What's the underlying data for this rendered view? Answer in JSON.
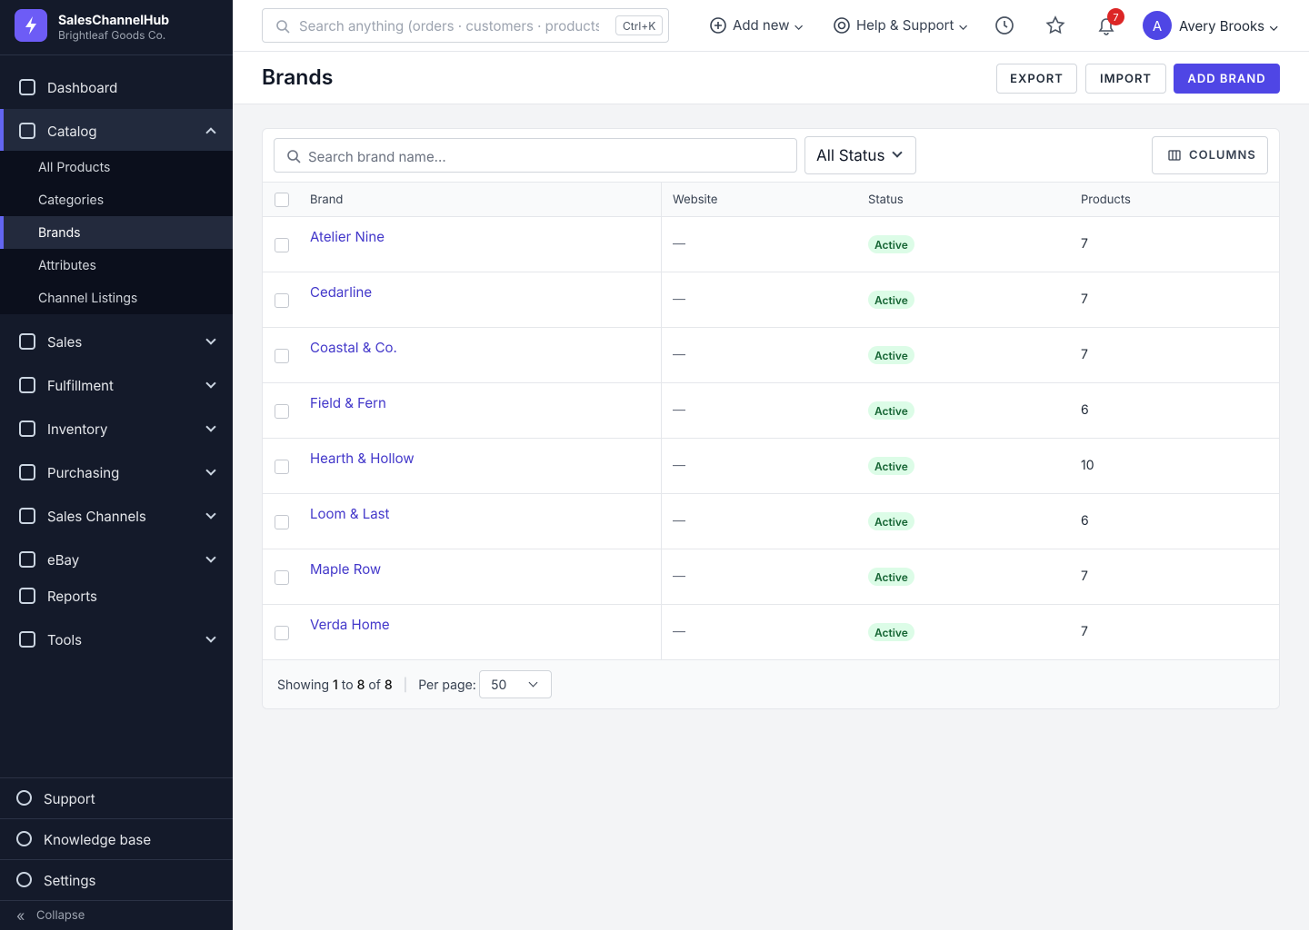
{
  "sidebar": {
    "app_name": "SalesChannelHub",
    "org_name": "Brightleaf Goods Co.",
    "nav": [
      {
        "label": "Dashboard"
      },
      {
        "label": "Catalog",
        "children": [
          "All Products",
          "Categories",
          "Brands",
          "Attributes",
          "Channel Listings"
        ]
      },
      {
        "label": "Sales"
      },
      {
        "label": "Fulfillment"
      },
      {
        "label": "Inventory"
      },
      {
        "label": "Purchasing"
      },
      {
        "label": "Sales Channels"
      },
      {
        "label": "eBay"
      },
      {
        "label": "Reports"
      },
      {
        "label": "Tools"
      }
    ],
    "footer": [
      "Support",
      "Knowledge base",
      "Settings"
    ],
    "collapse": "Collapse"
  },
  "topbar": {
    "search_placeholder": "Search anything (orders · customers · products · vendors)",
    "shortcut": "Ctrl+K",
    "add_new": "Add new",
    "help": "Help & Support",
    "notifications": 7,
    "avatar": "A",
    "user": "Avery Brooks"
  },
  "page": {
    "title": "Brands",
    "actions": [
      "EXPORT",
      "IMPORT",
      "ADD BRAND"
    ]
  },
  "filters": {
    "search_placeholder": "Search brand name...",
    "status": "All Status",
    "columns": "COLUMNS"
  },
  "table": {
    "headers": [
      "Brand",
      "Website",
      "Status",
      "Products"
    ],
    "rows": [
      [
        "Atelier Nine",
        "—",
        "Active",
        7
      ],
      [
        "Cedarline",
        "—",
        "Active",
        7
      ],
      [
        "Coastal & Co.",
        "—",
        "Active",
        7
      ],
      [
        "Field & Fern",
        "—",
        "Active",
        6
      ],
      [
        "Hearth & Hollow",
        "—",
        "Active",
        10
      ],
      [
        "Loom & Last",
        "—",
        "Active",
        6
      ],
      [
        "Maple Row",
        "—",
        "Active",
        7
      ],
      [
        "Verda Home",
        "—",
        "Active",
        7
      ]
    ]
  },
  "pagination": {
    "showing": "Showing",
    "from": 1,
    "to_word": "to",
    "to": 8,
    "of_word": "of",
    "total": 8,
    "per_page_label": "Per page:",
    "per_page": 50
  }
}
